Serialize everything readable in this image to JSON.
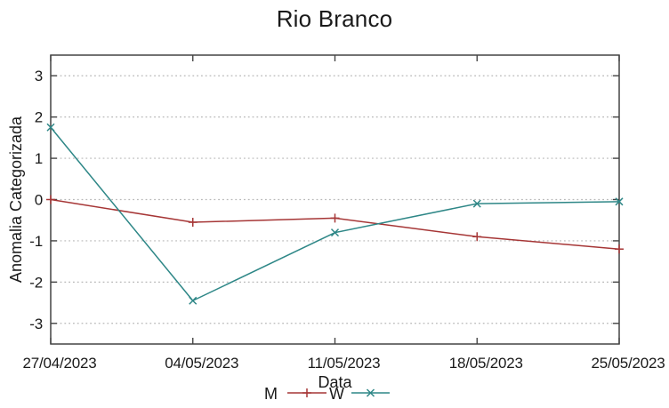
{
  "chart_data": {
    "type": "line",
    "title": "Rio Branco",
    "xlabel": "Data",
    "ylabel": "Anomalia Categorizada",
    "categories": [
      "27/04/2023",
      "04/05/2023",
      "11/05/2023",
      "18/05/2023",
      "25/05/2023"
    ],
    "series": [
      {
        "name": "M",
        "marker": "plus",
        "color": "#a63636",
        "values": [
          0,
          -0.55,
          -0.45,
          -0.9,
          -1.2
        ]
      },
      {
        "name": "W",
        "marker": "cross",
        "color": "#2e8787",
        "values": [
          1.75,
          -2.45,
          -0.8,
          -0.1,
          -0.05
        ]
      }
    ],
    "ylim": [
      -3.5,
      3.5
    ],
    "yticks": [
      -3,
      -2,
      -1,
      0,
      1,
      2,
      3
    ],
    "grid": "horizontal-dotted",
    "legend_position": "bottom-center",
    "colors": {
      "grid": "#b8b8b8",
      "border": "#444444",
      "text": "#1a1a1a",
      "background": "#ffffff"
    }
  }
}
